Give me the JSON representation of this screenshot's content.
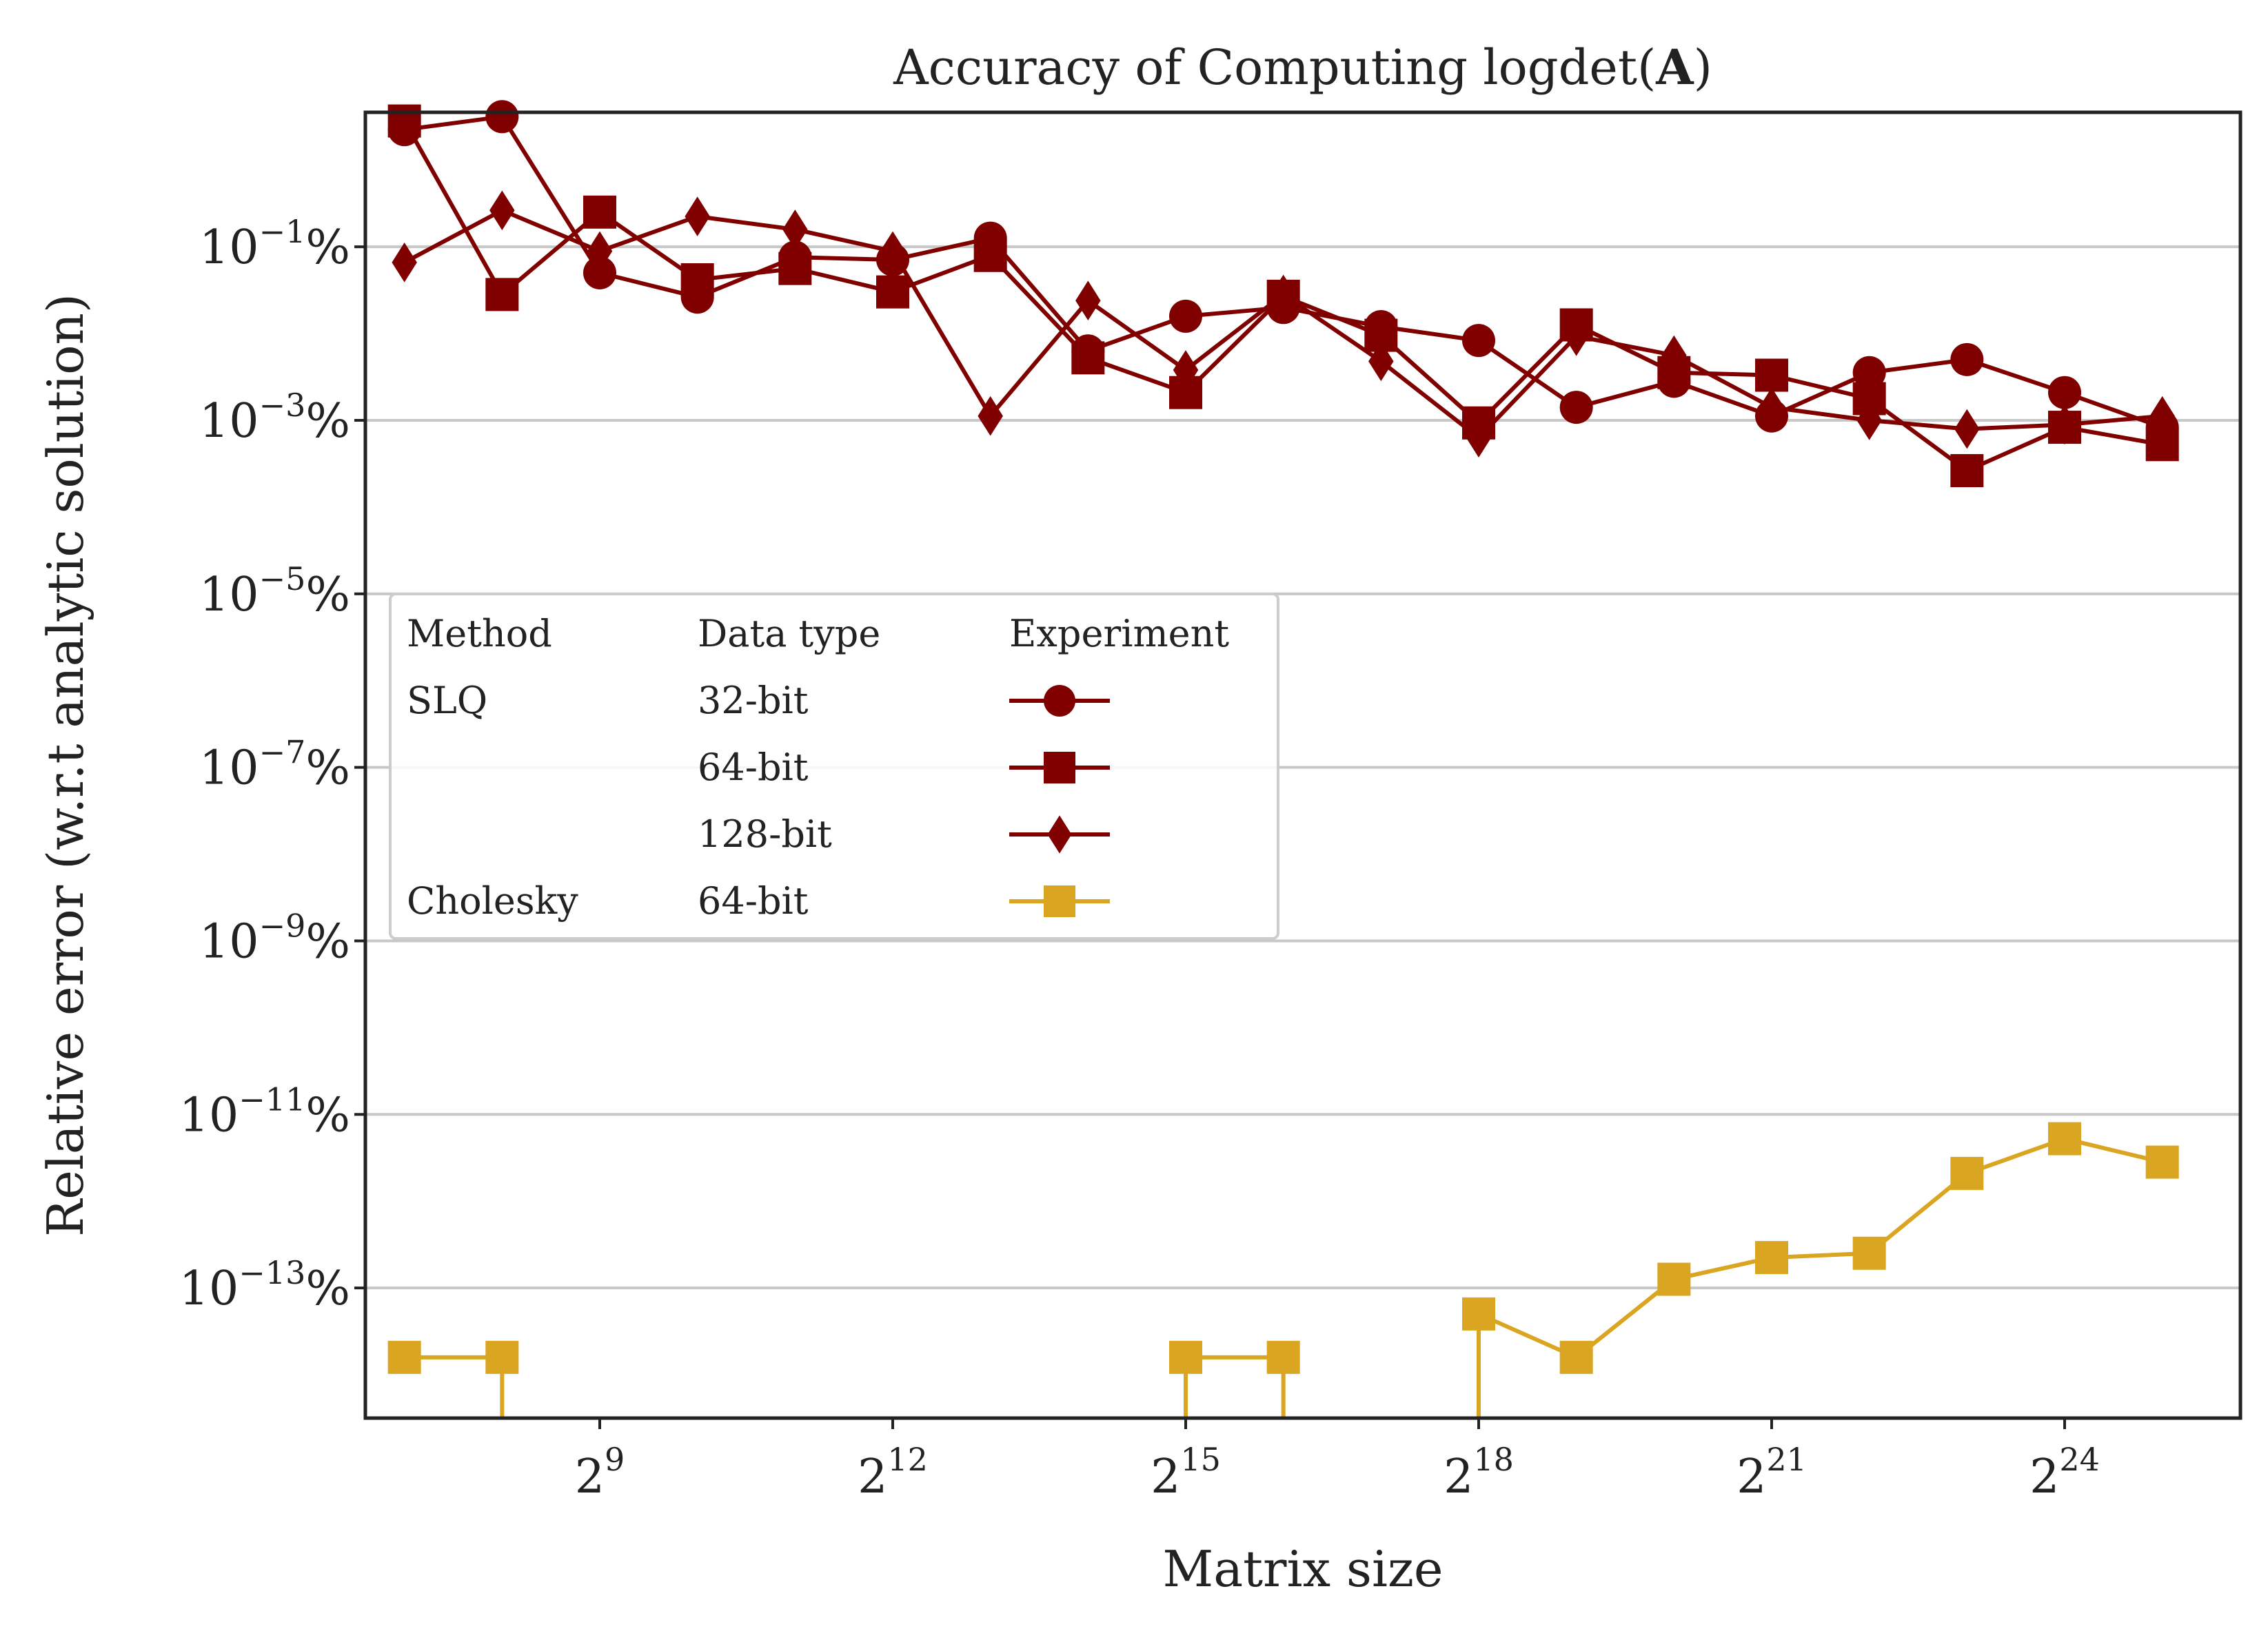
{
  "chart_data": {
    "type": "line",
    "title_prefix": "Accuracy of Computing logdet(",
    "title_bold": "A",
    "title_suffix": ")",
    "xlabel": "Matrix size",
    "ylabel": "Relative error (w.r.t analytic solution)",
    "x_scale": "log2",
    "y_scale": "log10",
    "xlim_log2": [
      6.6,
      25.8
    ],
    "ylim_log10": [
      -14.5,
      0.55
    ],
    "x_ticks": [
      {
        "exp": "9",
        "value": 9
      },
      {
        "exp": "12",
        "value": 12
      },
      {
        "exp": "15",
        "value": 15
      },
      {
        "exp": "18",
        "value": 18
      },
      {
        "exp": "21",
        "value": 21
      },
      {
        "exp": "24",
        "value": 24
      }
    ],
    "y_ticks": [
      {
        "exp": "−1",
        "value": -1
      },
      {
        "exp": "−3",
        "value": -3
      },
      {
        "exp": "−5",
        "value": -5
      },
      {
        "exp": "−7",
        "value": -7
      },
      {
        "exp": "−9",
        "value": -9
      },
      {
        "exp": "−11",
        "value": -11
      },
      {
        "exp": "−13",
        "value": -13
      }
    ],
    "y_tick_suffix": "%",
    "grid": "horizontal",
    "legend": {
      "placement": "center-left",
      "headers": [
        "Method",
        "Data type",
        "Experiment"
      ],
      "rows": [
        {
          "method": "SLQ",
          "dtype": "32-bit",
          "series": 0
        },
        {
          "method": "",
          "dtype": "64-bit",
          "series": 1
        },
        {
          "method": "",
          "dtype": "128-bit",
          "series": 2
        },
        {
          "method": "Cholesky",
          "dtype": "64-bit",
          "series": 3
        }
      ]
    },
    "series": [
      {
        "method": "SLQ",
        "dtype": "32-bit",
        "marker": "circle",
        "color": "#800000",
        "x_log2": [
          7,
          8,
          9,
          10,
          11,
          12,
          13,
          14,
          15,
          16,
          17,
          18,
          19,
          20,
          21,
          22,
          23,
          24,
          25
        ],
        "y_log10": [
          0.35,
          0.5,
          -1.3,
          -1.58,
          -1.12,
          -1.15,
          -0.9,
          -2.2,
          -1.8,
          -1.7,
          -1.92,
          -2.08,
          -2.85,
          -2.55,
          -2.95,
          -2.45,
          -2.3,
          -2.68,
          -3.08
        ]
      },
      {
        "method": "SLQ",
        "dtype": "64-bit",
        "marker": "square",
        "color": "#800000",
        "x_log2": [
          7,
          8,
          9,
          10,
          11,
          12,
          13,
          14,
          15,
          16,
          17,
          18,
          19,
          20,
          21,
          22,
          23,
          24,
          25
        ],
        "y_log10": [
          0.45,
          -1.55,
          -0.6,
          -1.38,
          -1.25,
          -1.52,
          -1.1,
          -2.28,
          -2.68,
          -1.57,
          -2.02,
          -3.03,
          -1.9,
          -2.45,
          -2.48,
          -2.75,
          -3.58,
          -3.08,
          -3.28
        ]
      },
      {
        "method": "SLQ",
        "dtype": "128-bit",
        "marker": "diamond",
        "color": "#800000",
        "x_log2": [
          7,
          8,
          9,
          10,
          11,
          12,
          13,
          14,
          15,
          16,
          17,
          18,
          19,
          20,
          21,
          22,
          23,
          24,
          25
        ],
        "y_log10": [
          -1.18,
          -0.58,
          -1.05,
          -0.65,
          -0.8,
          -1.05,
          -2.95,
          -1.62,
          -2.42,
          -1.55,
          -2.32,
          -3.2,
          -2.03,
          -2.25,
          -2.85,
          -3.0,
          -3.1,
          -3.05,
          -2.95
        ]
      },
      {
        "method": "Cholesky",
        "dtype": "64-bit",
        "marker": "square",
        "color": "#DAA520",
        "x_log2": [
          7,
          8,
          15,
          16,
          18,
          19,
          20,
          21,
          22,
          23,
          24,
          25
        ],
        "y_log10": [
          -13.8,
          -13.8,
          -13.8,
          -13.8,
          -13.3,
          -13.8,
          -12.9,
          -12.65,
          -12.6,
          -11.68,
          -11.28,
          -11.55
        ],
        "drop_to_bottom_at": [
          8,
          15,
          16,
          18
        ]
      }
    ]
  }
}
